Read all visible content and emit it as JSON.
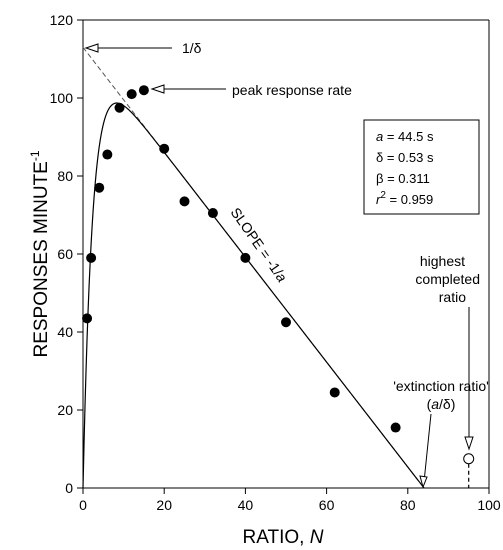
{
  "chart_data": {
    "type": "scatter",
    "xlabel": "RATIO, ",
    "xlabel_var": "N",
    "ylabel": "RESPONSES MINUTE",
    "ylabel_sup": "-1",
    "xlim": [
      0,
      100
    ],
    "ylim": [
      0,
      120
    ],
    "x_ticks": [
      0,
      20,
      40,
      60,
      80,
      100
    ],
    "y_ticks": [
      0,
      20,
      40,
      60,
      80,
      100,
      120
    ],
    "grid": false,
    "points": [
      {
        "x": 1,
        "y": 43.5
      },
      {
        "x": 2,
        "y": 59
      },
      {
        "x": 4,
        "y": 77
      },
      {
        "x": 6,
        "y": 85.5
      },
      {
        "x": 9,
        "y": 97.5
      },
      {
        "x": 12,
        "y": 101
      },
      {
        "x": 15,
        "y": 102
      },
      {
        "x": 20,
        "y": 87
      },
      {
        "x": 25,
        "y": 73.5
      },
      {
        "x": 32,
        "y": 70.5
      },
      {
        "x": 40,
        "y": 59
      },
      {
        "x": 50,
        "y": 42.5
      },
      {
        "x": 62,
        "y": 24.5
      },
      {
        "x": 77,
        "y": 15.5
      }
    ],
    "open_point": {
      "x": 95,
      "y": 7.5
    },
    "model": {
      "a": 44.5,
      "delta": 0.53,
      "beta": 0.311
    },
    "asymptote": {
      "from": [
        0,
        113
      ],
      "to": [
        84,
        0
      ]
    },
    "params_box": {
      "a_var": "a",
      "a_val": " = 44.5 s",
      "delta_val": "δ  = 0.53 s",
      "beta_val": "β  = 0.311",
      "r_var": "r",
      "r_sup": "2",
      "r_val": " = 0.959"
    },
    "annotations": {
      "one_over_delta": "1/δ",
      "peak": "peak response rate",
      "slope_prefix": "SLOPE = -1/",
      "slope_var": "a",
      "extinction_line1": "'extinction ratio'",
      "extinction_open": "(",
      "extinction_var": "a",
      "extinction_close": "/δ)",
      "highest_line1": "highest",
      "highest_line2": "completed",
      "highest_line3": "ratio"
    }
  }
}
